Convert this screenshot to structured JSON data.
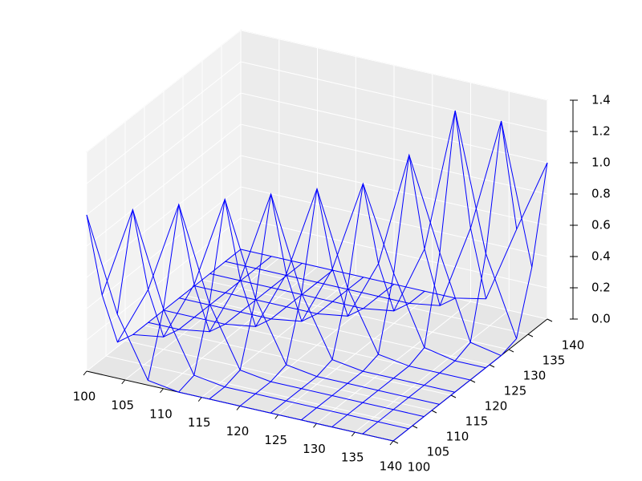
{
  "chart_data": {
    "type": "wireframe",
    "x": [
      100,
      104,
      108,
      112,
      116,
      120,
      124,
      128,
      132,
      136,
      140
    ],
    "y": [
      100,
      104,
      108,
      112,
      116,
      120,
      124,
      128,
      132,
      136,
      140
    ],
    "z": [
      [
        1,
        0.41,
        0.03,
        0,
        0,
        0,
        0,
        0,
        0,
        0,
        0
      ],
      [
        0.41,
        1,
        0.41,
        0.03,
        0,
        0,
        0,
        0,
        0,
        0,
        0
      ],
      [
        0.03,
        0.41,
        1,
        0.41,
        0.03,
        0,
        0,
        0,
        0,
        0,
        0
      ],
      [
        0,
        0.03,
        0.41,
        1,
        0.41,
        0.03,
        0,
        0,
        0,
        0,
        0
      ],
      [
        0,
        0,
        0.03,
        0.41,
        1,
        0.41,
        0.03,
        0,
        0,
        0,
        0
      ],
      [
        0,
        0,
        0,
        0.03,
        0.41,
        1,
        0.41,
        0.03,
        0,
        0,
        0
      ],
      [
        0,
        0,
        0,
        0,
        0.03,
        0.41,
        1,
        0.47,
        0.04,
        0,
        0
      ],
      [
        0,
        0,
        0,
        0,
        0,
        0.03,
        0.41,
        1.15,
        0.57,
        0.04,
        0
      ],
      [
        0,
        0,
        0,
        0,
        0,
        0,
        0.03,
        0.47,
        1.4,
        0.53,
        0.03
      ],
      [
        0,
        0,
        0,
        0,
        0,
        0,
        0,
        0.03,
        0.57,
        1.3,
        0.41
      ],
      [
        0,
        0,
        0,
        0,
        0,
        0,
        0,
        0,
        0.04,
        0.53,
        1
      ]
    ],
    "color": "#0000ff",
    "xlim": [
      100,
      140
    ],
    "ylim": [
      100,
      140
    ],
    "zlim": [
      0,
      1.4
    ],
    "xticks": [
      100,
      105,
      110,
      115,
      120,
      125,
      130,
      135,
      140
    ],
    "yticks": [
      100,
      105,
      110,
      115,
      120,
      125,
      130,
      135,
      140
    ],
    "zticks": [
      {
        "value": 0,
        "label": "0.0"
      },
      {
        "value": 0.2,
        "label": "0.2"
      },
      {
        "value": 0.4,
        "label": "0.4"
      },
      {
        "value": 0.6,
        "label": "0.6"
      },
      {
        "value": 0.8,
        "label": "0.8"
      },
      {
        "value": 1,
        "label": "1.0"
      },
      {
        "value": 1.2,
        "label": "1.2"
      },
      {
        "value": 1.4,
        "label": "1.4"
      }
    ],
    "grid": true
  }
}
